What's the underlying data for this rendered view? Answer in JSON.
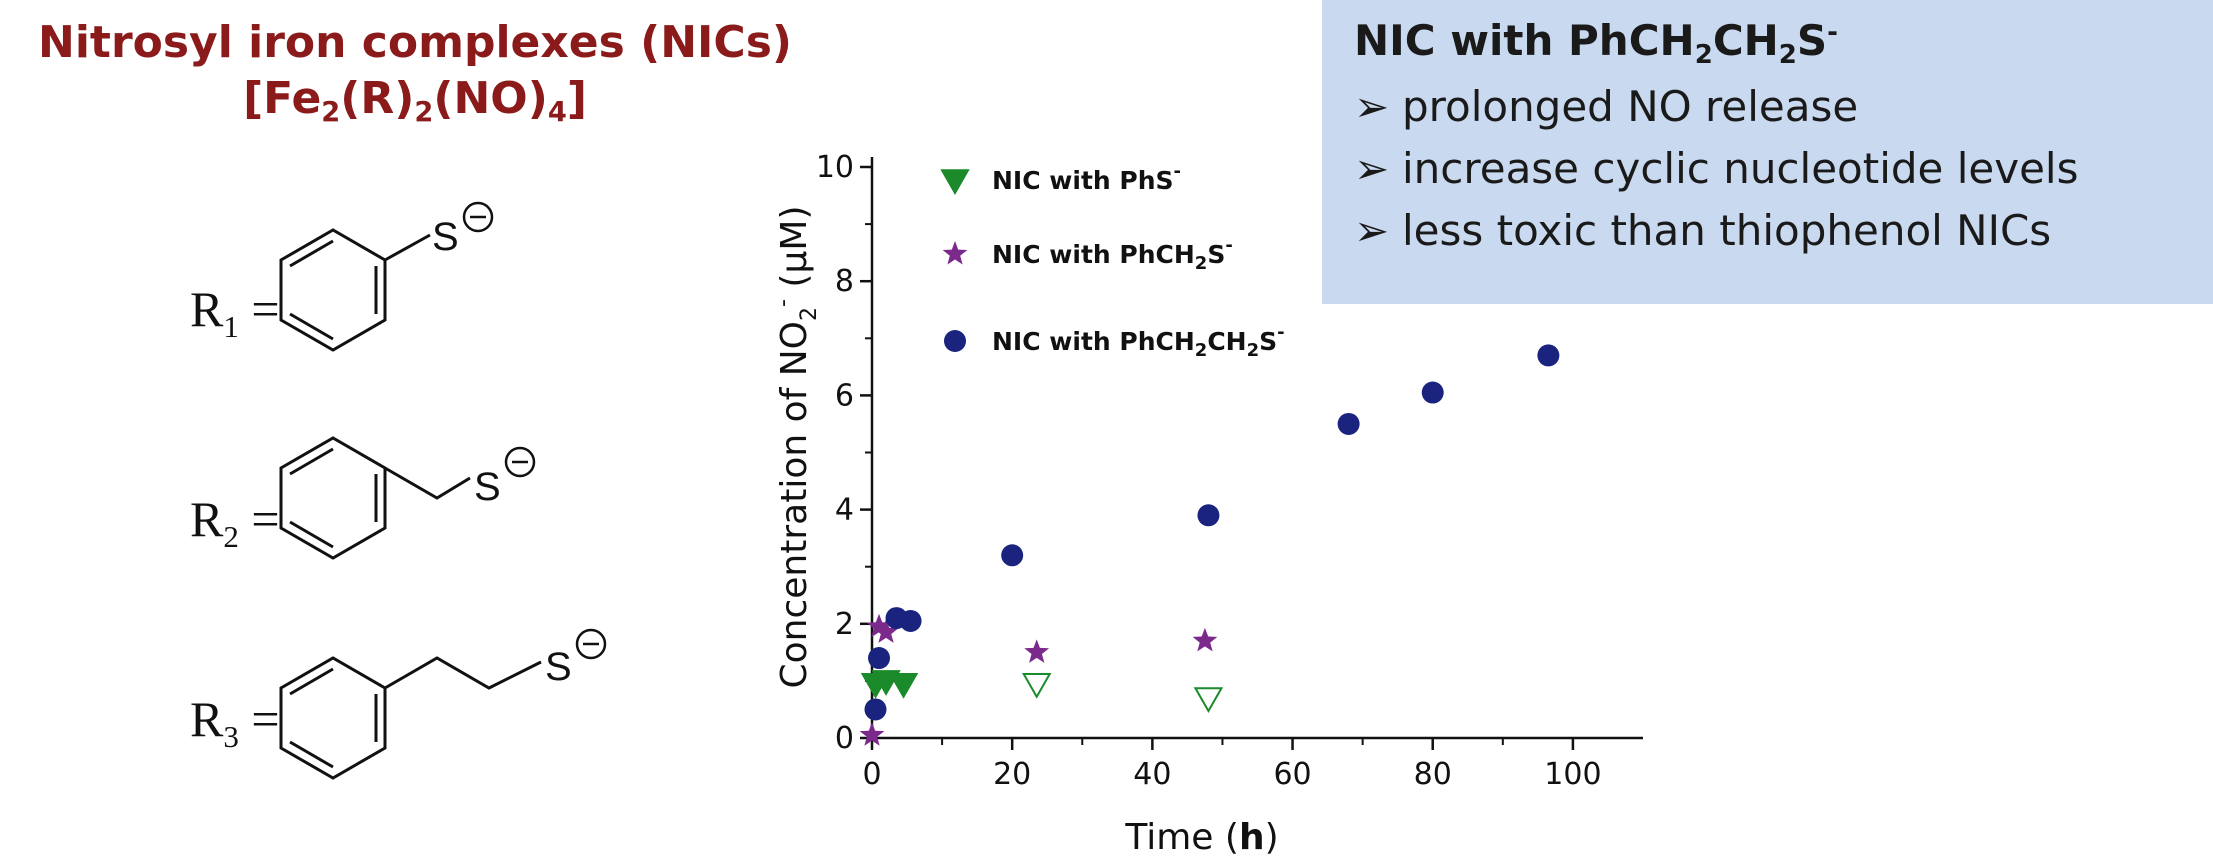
{
  "header": {
    "title": "Nitrosyl iron complexes (NICs)",
    "formula": {
      "fe": "Fe",
      "fe_sub": "2",
      "r": "(R)",
      "r_sub": "2",
      "no": "(NO)",
      "no_sub": "4"
    }
  },
  "ligands": [
    {
      "symbol": "R",
      "sub": "1",
      "eq": "=",
      "charge": "S"
    },
    {
      "symbol": "R",
      "sub": "2",
      "eq": "=",
      "charge": "S"
    },
    {
      "symbol": "R",
      "sub": "3",
      "eq": "=",
      "charge": "S"
    }
  ],
  "info_box": {
    "title": "NIC with PhCH",
    "bullet": "➢",
    "items": [
      "prolonged NO release",
      "increase cyclic nucleotide levels",
      "less toxic than thiophenol NICs"
    ]
  },
  "colors": {
    "title": "#8b1a1a",
    "box": "#c9d9ef",
    "phs": "#1a8a2a",
    "phch2s": "#7b2a8c",
    "phch2ch2s": "#1a237e"
  },
  "chart_data": {
    "type": "scatter",
    "xlabel": "Time",
    "xlabel_unit": "h",
    "ylabel": "Concentration of NO",
    "ylabel_unit": "μM",
    "xlim": [
      0,
      110
    ],
    "ylim": [
      0,
      10
    ],
    "xticks": [
      0,
      20,
      40,
      60,
      80,
      100
    ],
    "yticks": [
      0,
      2,
      4,
      6,
      8,
      10
    ],
    "legend_position": "top-left",
    "series": [
      {
        "name": "NIC with PhS",
        "name_sup": "-",
        "marker": "triangle-down",
        "color": "#1a8a2a",
        "points": [
          {
            "x": 0.5,
            "y": 0.95,
            "filled": true
          },
          {
            "x": 2,
            "y": 1.0,
            "filled": true
          },
          {
            "x": 4.5,
            "y": 0.95,
            "filled": true
          },
          {
            "x": 23.5,
            "y": 0.95,
            "filled": false
          },
          {
            "x": 48,
            "y": 0.7,
            "filled": false
          }
        ]
      },
      {
        "name": "NIC with PhCH",
        "name_sub": "2",
        "name_tail": "S",
        "name_sup": "-",
        "marker": "star",
        "color": "#7b2a8c",
        "points": [
          {
            "x": 0,
            "y": 0.05
          },
          {
            "x": 1,
            "y": 1.95
          },
          {
            "x": 2,
            "y": 1.85
          },
          {
            "x": 23.5,
            "y": 1.5
          },
          {
            "x": 47.5,
            "y": 1.7
          }
        ]
      },
      {
        "name": "NIC with PhCH",
        "name_sub": "2",
        "name_mid": "CH",
        "name_sub2": "2",
        "name_tail": "S",
        "name_sup": "-",
        "marker": "circle",
        "color": "#1a237e",
        "points": [
          {
            "x": 0.5,
            "y": 0.5
          },
          {
            "x": 1,
            "y": 1.4
          },
          {
            "x": 3.5,
            "y": 2.1
          },
          {
            "x": 5.5,
            "y": 2.05
          },
          {
            "x": 20,
            "y": 3.2
          },
          {
            "x": 48,
            "y": 3.9
          },
          {
            "x": 68,
            "y": 5.5
          },
          {
            "x": 80,
            "y": 6.05
          },
          {
            "x": 96.5,
            "y": 6.7
          }
        ]
      }
    ]
  }
}
